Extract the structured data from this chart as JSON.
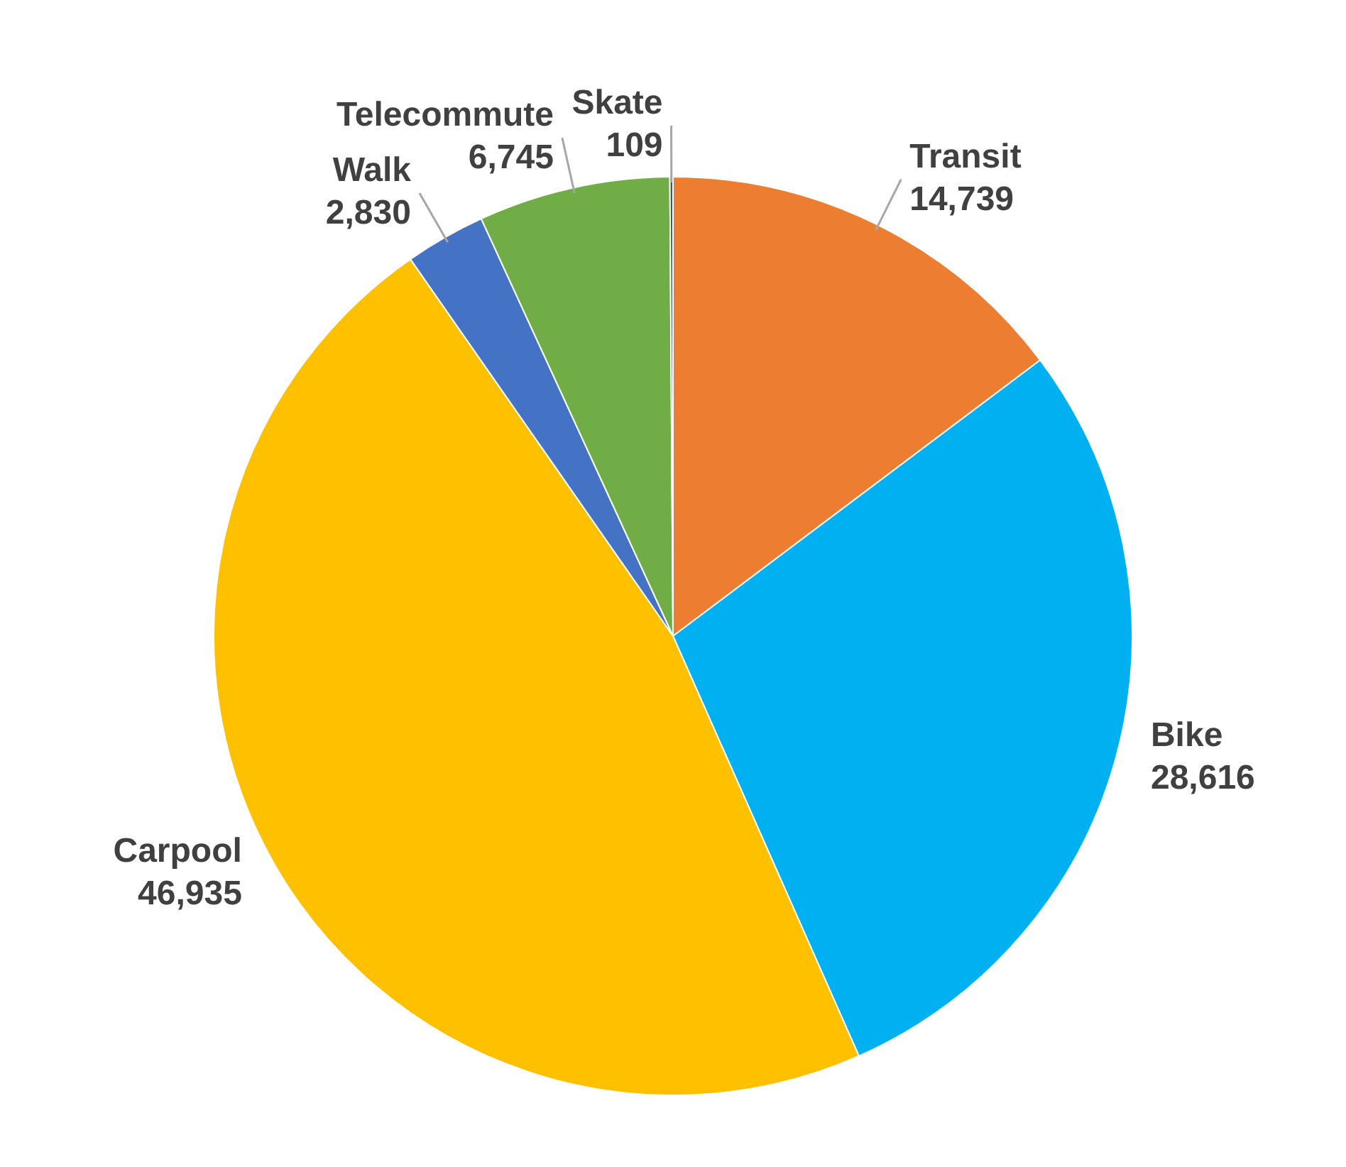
{
  "chart_data": {
    "type": "pie",
    "categories": [
      "Transit",
      "Bike",
      "Carpool",
      "Walk",
      "Telecommute",
      "Skate"
    ],
    "values": [
      14739,
      28616,
      46935,
      2830,
      6745,
      109
    ],
    "colors": [
      "#ed7d31",
      "#00b0f0",
      "#ffc000",
      "#4472c4",
      "#70ad47",
      "#44546a"
    ],
    "value_labels": [
      "14,739",
      "28,616",
      "46,935",
      "2,830",
      "6,745",
      "109"
    ],
    "legend": false
  }
}
